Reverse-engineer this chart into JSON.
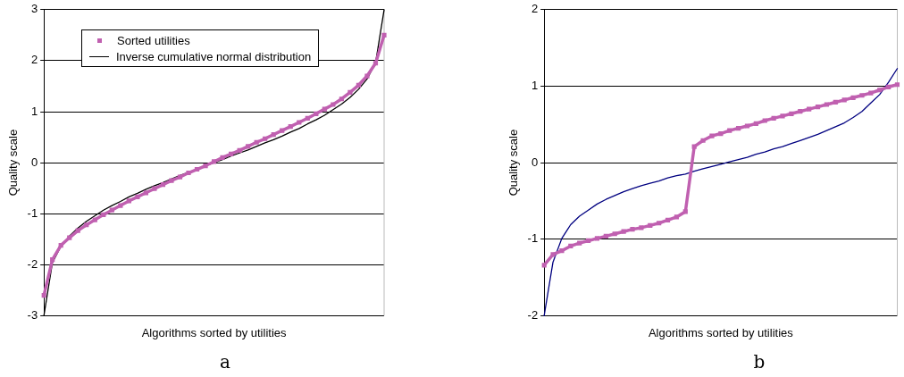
{
  "chart_data": [
    {
      "type": "line",
      "categories": [
        null,
        null,
        null,
        null,
        null,
        null,
        null,
        null,
        null,
        null,
        null,
        null,
        null,
        null,
        null,
        null,
        null,
        null,
        null,
        null,
        null,
        null,
        null,
        null,
        null,
        null,
        null,
        null,
        null,
        null,
        null,
        null,
        null,
        null,
        null,
        null,
        null,
        null,
        null,
        null,
        null
      ],
      "xlabel": "Algorithms sorted by utilities",
      "ylabel": "Quality scale",
      "ylim": [
        -3,
        3
      ],
      "yticks": [
        -3,
        -2,
        -1,
        0,
        1,
        2,
        3
      ],
      "grid": "y",
      "legend": "top",
      "tick_labels": "y",
      "annotations": [
        "a"
      ],
      "series": [
        {
          "name": "Sorted utilities",
          "color": "#c060b0",
          "marker": "square",
          "values": [
            -2.6,
            -1.9,
            -1.62,
            -1.47,
            -1.33,
            -1.22,
            -1.12,
            -1.02,
            -0.93,
            -0.84,
            -0.75,
            -0.67,
            -0.59,
            -0.51,
            -0.43,
            -0.35,
            -0.28,
            -0.2,
            -0.13,
            -0.06,
            0.02,
            0.1,
            0.17,
            0.24,
            0.32,
            0.4,
            0.47,
            0.55,
            0.63,
            0.71,
            0.79,
            0.87,
            0.96,
            1.05,
            1.14,
            1.25,
            1.38,
            1.52,
            1.7,
            1.95,
            2.5
          ]
        },
        {
          "name": "Inverse cumulative normal distribution",
          "color": "#000000",
          "marker": "none",
          "values": [
            -3,
            -1.96,
            -1.64,
            -1.44,
            -1.28,
            -1.15,
            -1.04,
            -0.93,
            -0.84,
            -0.76,
            -0.67,
            -0.6,
            -0.52,
            -0.45,
            -0.39,
            -0.32,
            -0.25,
            -0.19,
            -0.13,
            -0.06,
            0,
            0.06,
            0.13,
            0.19,
            0.25,
            0.32,
            0.39,
            0.45,
            0.52,
            0.6,
            0.67,
            0.76,
            0.84,
            0.93,
            1.04,
            1.15,
            1.28,
            1.44,
            1.64,
            1.96,
            3
          ]
        }
      ]
    },
    {
      "type": "line",
      "categories": [
        null,
        null,
        null,
        null,
        null,
        null,
        null,
        null,
        null,
        null,
        null,
        null,
        null,
        null,
        null,
        null,
        null,
        null,
        null,
        null,
        null,
        null,
        null,
        null,
        null,
        null,
        null,
        null,
        null,
        null,
        null,
        null,
        null,
        null,
        null,
        null,
        null,
        null,
        null,
        null,
        null
      ],
      "xlabel": "Algorithms sorted by utilities",
      "ylabel": "Quality scale",
      "ylim": [
        -2,
        2
      ],
      "yticks": [
        -2,
        -1,
        0,
        1,
        2
      ],
      "grid": "y",
      "tick_labels": "y",
      "annotations": [
        "b"
      ],
      "series": [
        {
          "color": "#c060b0",
          "marker": "square",
          "values": [
            -1.34,
            -1.2,
            -1.15,
            -1.09,
            -1.05,
            -1.02,
            -0.99,
            -0.96,
            -0.93,
            -0.9,
            -0.87,
            -0.85,
            -0.82,
            -0.79,
            -0.75,
            -0.71,
            -0.64,
            0.21,
            0.29,
            0.35,
            0.38,
            0.42,
            0.45,
            0.48,
            0.51,
            0.55,
            0.58,
            0.61,
            0.64,
            0.67,
            0.7,
            0.73,
            0.76,
            0.79,
            0.82,
            0.85,
            0.88,
            0.91,
            0.95,
            0.99,
            1.02
          ]
        },
        {
          "color": "#000080",
          "marker": "none",
          "values": [
            -2,
            -1.3,
            -0.99,
            -0.81,
            -0.7,
            -0.62,
            -0.54,
            -0.48,
            -0.43,
            -0.38,
            -0.34,
            -0.3,
            -0.27,
            -0.24,
            -0.2,
            -0.17,
            -0.15,
            -0.11,
            -0.08,
            -0.05,
            -0.02,
            0.01,
            0.04,
            0.07,
            0.11,
            0.14,
            0.18,
            0.21,
            0.25,
            0.29,
            0.33,
            0.37,
            0.42,
            0.47,
            0.52,
            0.59,
            0.67,
            0.78,
            0.89,
            1.05,
            1.23
          ]
        }
      ]
    }
  ]
}
